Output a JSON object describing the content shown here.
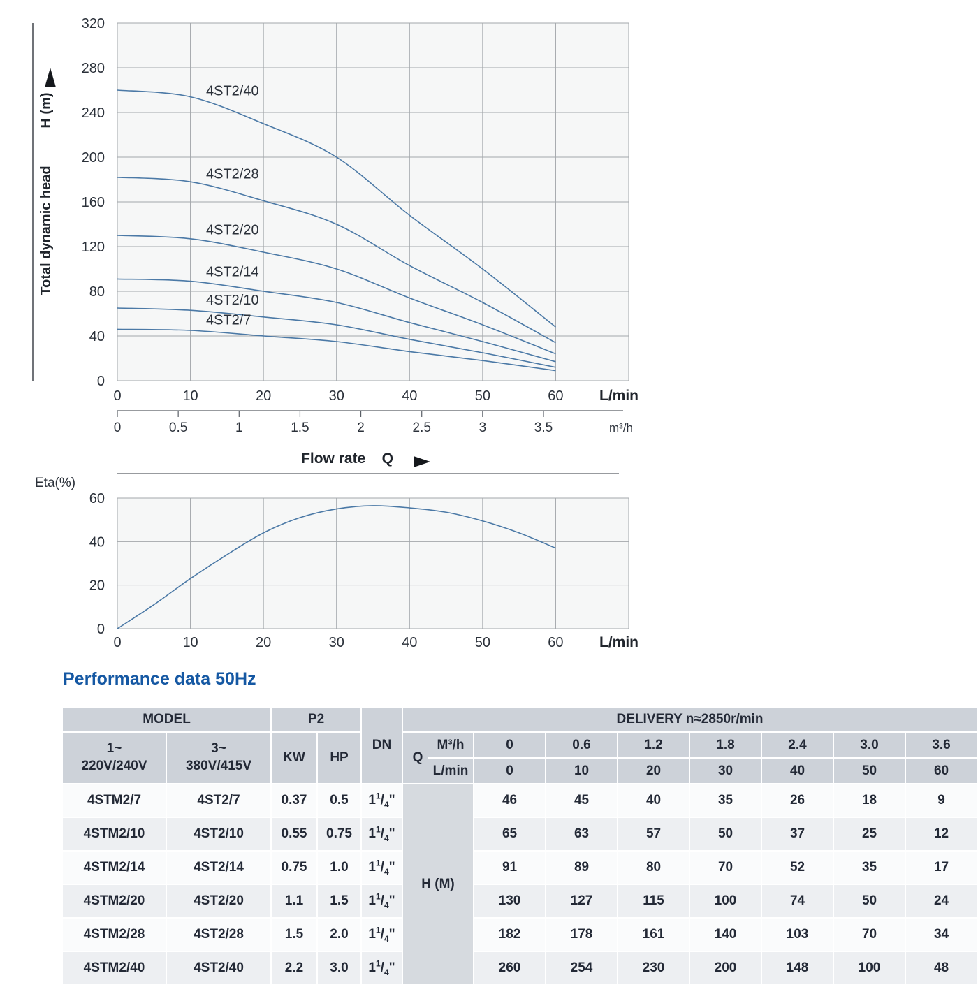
{
  "colors": {
    "curve": "#4b79a6",
    "grid": "#a3a7ab",
    "plot_bg": "#f6f7f7",
    "axis": "#40454c",
    "text": "#2b313a",
    "title_blue": "#1558a3",
    "header_bg": "#cdd2d9",
    "row_alt_bg": "#edeff2",
    "hm_bg": "#d6dadf"
  },
  "chart_data": [
    {
      "type": "line",
      "name": "head-curves",
      "ylabel": "Total dynamic head",
      "y_axis_label": "H (m)",
      "labels": {
        "flow_rate": "Flow rate",
        "q": "Q",
        "lmin": "L/min",
        "m3h": "m³/h"
      },
      "xlim": [
        0,
        70
      ],
      "ylim": [
        0,
        320
      ],
      "y_ticks": [
        0,
        40,
        80,
        120,
        160,
        200,
        240,
        280,
        320
      ],
      "x_ticks_lmin": [
        0,
        10,
        20,
        30,
        40,
        50,
        60
      ],
      "x_ticks_m3h": [
        "0",
        "0.5",
        "1",
        "1.5",
        "2",
        "2.5",
        "3",
        "3.5"
      ],
      "x": [
        0,
        10,
        20,
        30,
        40,
        50,
        60
      ],
      "series": [
        {
          "name": "4ST2/40",
          "values": [
            260,
            254,
            230,
            200,
            148,
            100,
            48
          ]
        },
        {
          "name": "4ST2/28",
          "values": [
            182,
            178,
            161,
            140,
            103,
            70,
            34
          ]
        },
        {
          "name": "4ST2/20",
          "values": [
            130,
            127,
            115,
            100,
            74,
            50,
            24
          ]
        },
        {
          "name": "4ST2/14",
          "values": [
            91,
            89,
            80,
            70,
            52,
            35,
            17
          ]
        },
        {
          "name": "4ST2/10",
          "values": [
            65,
            63,
            57,
            50,
            37,
            25,
            12
          ]
        },
        {
          "name": "4ST2/7",
          "values": [
            46,
            45,
            40,
            35,
            26,
            18,
            9
          ]
        }
      ]
    },
    {
      "type": "line",
      "name": "efficiency",
      "ylabel": "Eta(%)",
      "labels": {
        "lmin": "L/min"
      },
      "xlim": [
        0,
        70
      ],
      "ylim": [
        0,
        60
      ],
      "y_ticks": [
        0,
        20,
        40,
        60
      ],
      "x_ticks": [
        0,
        10,
        20,
        30,
        40,
        50,
        60
      ],
      "x": [
        0,
        5,
        10,
        15,
        20,
        25,
        30,
        35,
        40,
        45,
        50,
        55,
        60
      ],
      "values": [
        0,
        11,
        23,
        34,
        44,
        51,
        55,
        56.5,
        55.5,
        53.5,
        49.5,
        44,
        37
      ]
    }
  ],
  "table": {
    "title": "Performance data 50Hz",
    "header": {
      "model": "MODEL",
      "p2": "P2",
      "dn": "DN",
      "delivery": "DELIVERY  n≈2850r/min",
      "phase1": "1~",
      "voltage1": "220V/240V",
      "phase3": "3~",
      "voltage3": "380V/415V",
      "kw": "KW",
      "hp": "HP",
      "q": "Q",
      "m3h": "M³/h",
      "lmin": "L/min",
      "m3h_values": [
        "0",
        "0.6",
        "1.2",
        "1.8",
        "2.4",
        "3.0",
        "3.6"
      ],
      "lmin_values": [
        "0",
        "10",
        "20",
        "30",
        "40",
        "50",
        "60"
      ]
    },
    "h_m_label": "H (M)",
    "dn_value": {
      "whole": "1",
      "num": "1",
      "den": "4",
      "unit": "\""
    },
    "rows": [
      {
        "model1": "4STM2/7",
        "model3": "4ST2/7",
        "kw": "0.37",
        "hp": "0.5",
        "h": [
          "46",
          "45",
          "40",
          "35",
          "26",
          "18",
          "9"
        ]
      },
      {
        "model1": "4STM2/10",
        "model3": "4ST2/10",
        "kw": "0.55",
        "hp": "0.75",
        "h": [
          "65",
          "63",
          "57",
          "50",
          "37",
          "25",
          "12"
        ]
      },
      {
        "model1": "4STM2/14",
        "model3": "4ST2/14",
        "kw": "0.75",
        "hp": "1.0",
        "h": [
          "91",
          "89",
          "80",
          "70",
          "52",
          "35",
          "17"
        ]
      },
      {
        "model1": "4STM2/20",
        "model3": "4ST2/20",
        "kw": "1.1",
        "hp": "1.5",
        "h": [
          "130",
          "127",
          "115",
          "100",
          "74",
          "50",
          "24"
        ]
      },
      {
        "model1": "4STM2/28",
        "model3": "4ST2/28",
        "kw": "1.5",
        "hp": "2.0",
        "h": [
          "182",
          "178",
          "161",
          "140",
          "103",
          "70",
          "34"
        ]
      },
      {
        "model1": "4STM2/40",
        "model3": "4ST2/40",
        "kw": "2.2",
        "hp": "3.0",
        "h": [
          "260",
          "254",
          "230",
          "200",
          "148",
          "100",
          "48"
        ]
      }
    ]
  }
}
